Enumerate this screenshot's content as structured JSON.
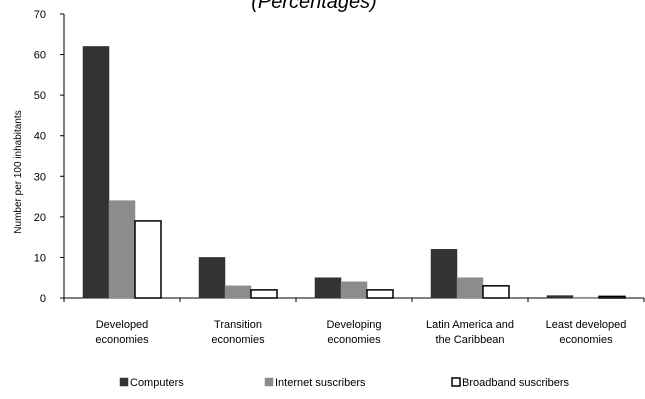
{
  "chart_data": {
    "type": "bar",
    "title": "(Percentages)",
    "ylabel": "Number per 100 inhabitants",
    "xlabel": "",
    "ylim": [
      0,
      70
    ],
    "yticks": [
      0,
      10,
      20,
      30,
      40,
      50,
      60,
      70
    ],
    "categories": [
      [
        "Developed",
        "economies"
      ],
      [
        "Transition",
        "economies"
      ],
      [
        "Developing",
        "economies"
      ],
      [
        "Latin America and",
        "the Caribbean"
      ],
      [
        "Least developed",
        "economies"
      ]
    ],
    "series": [
      {
        "name": "Computers",
        "values": [
          62,
          10,
          5,
          12,
          0.6
        ],
        "color": "#333333"
      },
      {
        "name": "Internet suscribers",
        "values": [
          24,
          3,
          4,
          5,
          0.2
        ],
        "color": "#8c8c8c"
      },
      {
        "name": "Broadband suscribers",
        "values": [
          19,
          2,
          2,
          3,
          0.4
        ],
        "color": "#ffffff"
      }
    ],
    "grid": false,
    "legend_position": "bottom"
  }
}
